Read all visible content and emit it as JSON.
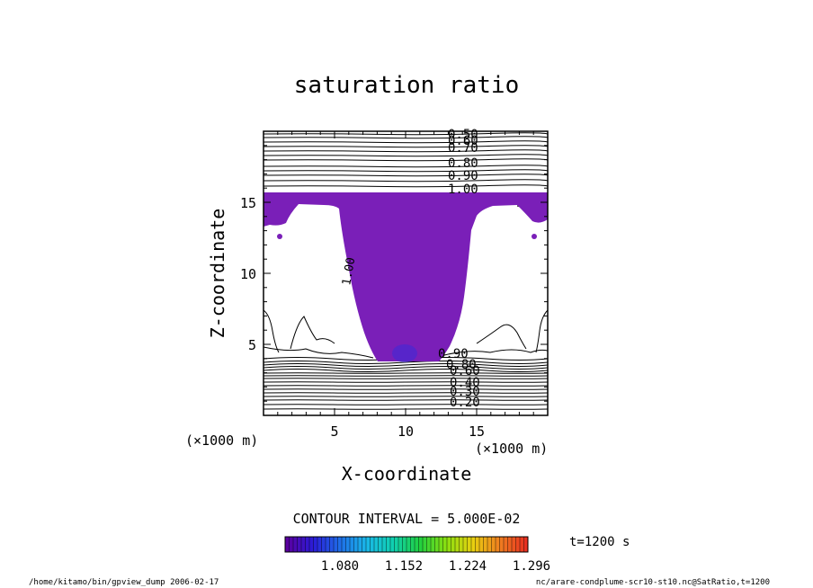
{
  "chart_data": {
    "type": "contour",
    "title": "saturation ratio",
    "xlabel": "X-coordinate",
    "ylabel": "Z-coordinate",
    "x_unit_label": "(×1000 m)",
    "y_unit_label": "(×1000 m)",
    "xlim": [
      0,
      20
    ],
    "ylim": [
      0,
      20
    ],
    "x_ticks": [
      5,
      10,
      15
    ],
    "y_ticks": [
      5,
      10,
      15
    ],
    "contour_interval_text": "CONTOUR INTERVAL = 5.000E-02",
    "contour_labels_top": [
      "0.50",
      "0.60",
      "0.70",
      "0.80",
      "0.90",
      "1.00"
    ],
    "contour_labels_bottom": [
      "0.90",
      "0.80",
      "0.60",
      "0.40",
      "0.30",
      "0.20"
    ],
    "contour_label_mid": "1.00",
    "fill_color": "#7a1fb8",
    "colorbar": {
      "ticks": [
        "1.080",
        "1.152",
        "1.224",
        "1.296"
      ],
      "colors": [
        "#5a00a0",
        "#2a1cd8",
        "#1f6ee8",
        "#19b8e8",
        "#10d0b0",
        "#20d040",
        "#8ae010",
        "#e8d010",
        "#f08020",
        "#e83020"
      ]
    },
    "time_label": "t=1200 s",
    "footer_left": "/home/kitamo/bin/gpview_dump  2006-02-17",
    "footer_right": "nc/arare-condplume-scr10-st10.nc@SatRatio,t=1200"
  }
}
